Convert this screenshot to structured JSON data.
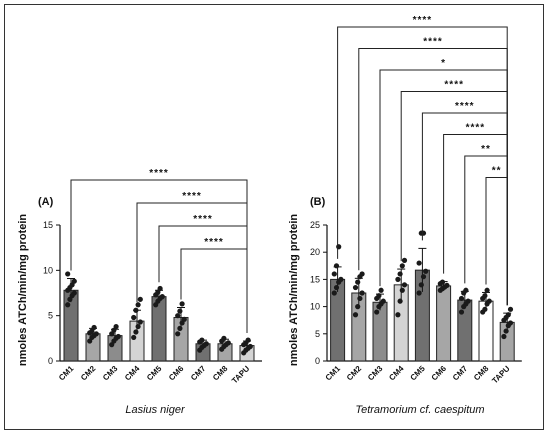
{
  "chart_data": [
    {
      "type": "bar",
      "panel_label": "(A)",
      "xlabel": "Lasius niger",
      "ylabel": "nmoles ATCh/min/mg protein",
      "ylim": [
        0,
        15
      ],
      "yticks": [
        "0",
        "5",
        "10",
        "15"
      ],
      "categories": [
        "CM1",
        "CM2",
        "CM3",
        "CM4",
        "CM5",
        "CM6",
        "CM7",
        "CM8",
        "TAPU"
      ],
      "values": [
        7.8,
        3.0,
        2.8,
        4.4,
        7.1,
        4.8,
        1.9,
        1.9,
        1.7
      ],
      "errors": [
        1.3,
        0.6,
        0.7,
        1.2,
        0.7,
        1.1,
        0.4,
        0.5,
        0.5
      ],
      "bar_colors": [
        "#707070",
        "#a6a6a6",
        "#8c8c8c",
        "#d4d4d4",
        "#707070",
        "#a6a6a6",
        "#707070",
        "#a6a6a6",
        "#d4d4d4"
      ],
      "points": [
        [
          6.2,
          6.8,
          7.2,
          7.5,
          7.8,
          8.1,
          8.4,
          8.8,
          9.6
        ],
        [
          2.2,
          2.6,
          2.8,
          3.0,
          3.1,
          3.3,
          3.7
        ],
        [
          1.8,
          2.2,
          2.5,
          2.7,
          3.0,
          3.4,
          3.8
        ],
        [
          2.6,
          3.2,
          3.8,
          4.3,
          4.8,
          5.6,
          6.2,
          6.8
        ],
        [
          6.2,
          6.6,
          6.9,
          7.1,
          7.3,
          7.6,
          8.0
        ],
        [
          3.0,
          3.6,
          4.2,
          4.6,
          5.0,
          5.5,
          6.3
        ],
        [
          1.2,
          1.5,
          1.7,
          1.9,
          2.1,
          2.3
        ],
        [
          1.3,
          1.6,
          1.8,
          2.0,
          2.2,
          2.5
        ],
        [
          0.9,
          1.2,
          1.4,
          1.6,
          1.8,
          2.0,
          2.3
        ]
      ],
      "significance": [
        {
          "from": "CM1",
          "to": "TAPU",
          "label": "****"
        },
        {
          "from": "CM4",
          "to": "TAPU",
          "label": "****"
        },
        {
          "from": "CM5",
          "to": "TAPU",
          "label": "****"
        },
        {
          "from": "CM6",
          "to": "TAPU",
          "label": "****"
        }
      ]
    },
    {
      "type": "bar",
      "panel_label": "(B)",
      "xlabel": "Tetramorium cf. caespitum",
      "ylabel": "nmoles ATCh/min/mg protein",
      "ylim": [
        0,
        25
      ],
      "yticks": [
        "0",
        "5",
        "10",
        "15",
        "20",
        "25"
      ],
      "categories": [
        "CM1",
        "CM2",
        "CM3",
        "CM4",
        "CM5",
        "CM6",
        "CM7",
        "CM8",
        "TAPU"
      ],
      "values": [
        15.0,
        12.5,
        10.8,
        14.0,
        16.7,
        13.8,
        11.2,
        11.0,
        7.1
      ],
      "errors": [
        2.3,
        2.7,
        1.5,
        2.9,
        4.0,
        0.8,
        1.6,
        1.6,
        1.7
      ],
      "bar_colors": [
        "#707070",
        "#a6a6a6",
        "#8c8c8c",
        "#d4d4d4",
        "#707070",
        "#a6a6a6",
        "#707070",
        "#ffffff",
        "#a6a6a6"
      ],
      "points": [
        [
          12.5,
          13.5,
          14.5,
          15.0,
          16.0,
          17.5,
          21.0
        ],
        [
          8.5,
          10.0,
          11.5,
          12.5,
          13.5,
          14.5,
          15.5,
          16.0
        ],
        [
          9.0,
          10.0,
          10.5,
          11.0,
          11.5,
          12.0,
          13.0
        ],
        [
          8.5,
          11.0,
          13.0,
          14.0,
          15.0,
          16.0,
          17.5,
          18.5
        ],
        [
          12.5,
          14.0,
          15.5,
          16.5,
          18.0,
          23.5,
          23.5
        ],
        [
          13.0,
          13.3,
          13.6,
          13.9,
          14.2,
          14.5
        ],
        [
          9.0,
          10.0,
          10.5,
          11.0,
          11.5,
          12.5,
          13.0
        ],
        [
          9.0,
          9.5,
          10.5,
          11.0,
          11.5,
          12.0,
          13.0
        ],
        [
          4.5,
          5.5,
          6.5,
          7.0,
          7.5,
          8.0,
          8.5,
          9.5
        ]
      ],
      "significance": [
        {
          "from": "CM1",
          "to": "TAPU",
          "label": "****"
        },
        {
          "from": "CM2",
          "to": "TAPU",
          "label": "****"
        },
        {
          "from": "CM3",
          "to": "TAPU",
          "label": "*"
        },
        {
          "from": "CM4",
          "to": "TAPU",
          "label": "****"
        },
        {
          "from": "CM5",
          "to": "TAPU",
          "label": "****"
        },
        {
          "from": "CM6",
          "to": "TAPU",
          "label": "****"
        },
        {
          "from": "CM7",
          "to": "TAPU",
          "label": "**"
        },
        {
          "from": "CM8",
          "to": "TAPU",
          "label": "**"
        }
      ]
    }
  ]
}
